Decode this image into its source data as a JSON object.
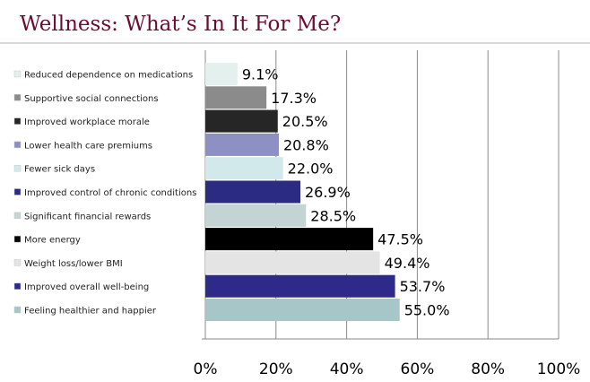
{
  "chart_data": {
    "type": "bar",
    "orientation": "horizontal",
    "title": "Wellness: What’s In It For Me?",
    "categories": [
      "Reduced dependence on medications",
      "Supportive social connections",
      "Improved workplace morale",
      "Lower health care premiums",
      "Fewer sick days",
      "Improved control of chronic conditions",
      "Significant financial rewards",
      "More energy",
      "Weight loss/lower BMI",
      "Improved overall well-being",
      "Feeling healthier and happier"
    ],
    "values": [
      9.1,
      17.3,
      20.5,
      20.8,
      22.0,
      26.9,
      28.5,
      47.5,
      49.4,
      53.7,
      55.0
    ],
    "value_labels": [
      "9.1%",
      "17.3%",
      "20.5%",
      "20.8%",
      "22.0%",
      "26.9%",
      "28.5%",
      "47.5%",
      "49.4%",
      "53.7%",
      "55.0%"
    ],
    "colors": [
      "#e4f0ee",
      "#8b8b8b",
      "#262626",
      "#8e8fc2",
      "#d2e9ec",
      "#2b2b82",
      "#c4d3d4",
      "#000000",
      "#e4e4e4",
      "#2e2a8a",
      "#a6c6c8"
    ],
    "xlim": [
      0,
      100
    ],
    "x_ticks": [
      0,
      20,
      40,
      60,
      80,
      100
    ],
    "x_tick_labels": [
      "0%",
      "20%",
      "40%",
      "60%",
      "80%",
      "100%"
    ],
    "grid": true,
    "legend": "left"
  }
}
